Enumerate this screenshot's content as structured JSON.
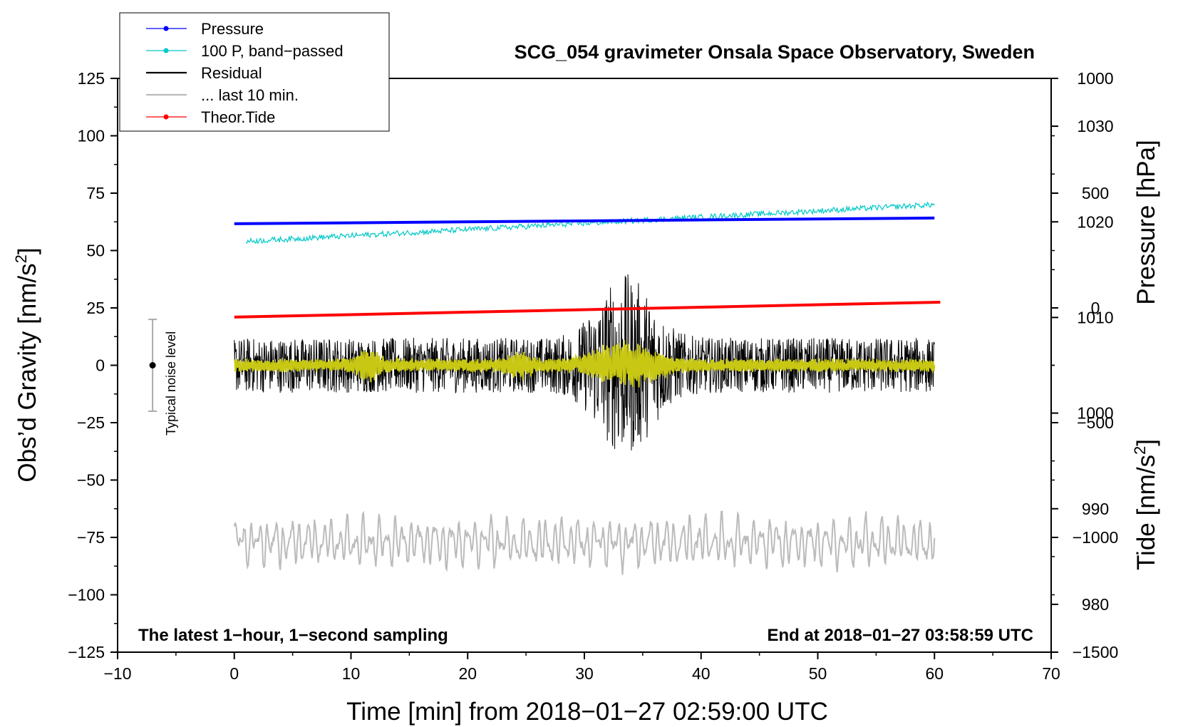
{
  "chart_data": {
    "type": "line",
    "title": "SCG_054 gravimeter Onsala Space Observatory, Sweden",
    "xlabel": "Time [min] from 2018−01−27 02:59:00 UTC",
    "ylabel_left_main": "Obs’d Gravity [nm/s",
    "ylabel_left_sup": "2",
    "ylabel_left_end": "]",
    "ylabel_right_pressure": "Pressure [hPa]",
    "ylabel_right_tide_main": "Tide [nm/s",
    "ylabel_right_tide_sup": "2",
    "ylabel_right_tide_end": "]",
    "xlim": [
      -10,
      70
    ],
    "ylim_left": [
      -125,
      125
    ],
    "ylim_pressure_axis": [
      975,
      1035
    ],
    "ylim_tide_axis": [
      -1500,
      1000
    ],
    "x_ticks": [
      "−10",
      "0",
      "10",
      "20",
      "30",
      "40",
      "50",
      "60",
      "70"
    ],
    "x_tick_values": [
      -10,
      0,
      10,
      20,
      30,
      40,
      50,
      60,
      70
    ],
    "y_left_ticks": [
      "125",
      "100",
      "75",
      "50",
      "25",
      "0",
      "−25",
      "−50",
      "−75",
      "−100",
      "−125"
    ],
    "y_left_tick_values": [
      125,
      100,
      75,
      50,
      25,
      0,
      -25,
      -50,
      -75,
      -100,
      -125
    ],
    "pressure_ticks": [
      "1030",
      "1020",
      "1010",
      "1000",
      "990",
      "980"
    ],
    "pressure_tick_values": [
      1030,
      1020,
      1010,
      1000,
      990,
      980
    ],
    "tide_ticks": [
      "1000",
      "500",
      "0",
      "−500",
      "−1000",
      "−1500"
    ],
    "tide_tick_values": [
      1000,
      500,
      0,
      -500,
      -1000,
      -1500
    ],
    "legend": [
      {
        "label": "Pressure",
        "color": "#0000ff",
        "marker": true
      },
      {
        "label": "100 P, band−passed",
        "color": "#00c8c8",
        "marker": true
      },
      {
        "label": "Residual",
        "color": "#000000",
        "marker": false
      },
      {
        "label": "... last 10 min.",
        "color": "#bbbbbb",
        "marker": false
      },
      {
        "label": "Theor.Tide",
        "color": "#ff0000",
        "marker": true
      }
    ],
    "annotations": {
      "left_bottom": "The latest 1−hour, 1−second sampling",
      "right_bottom": "End at 2018−01−27 03:58:59 UTC",
      "noise_label": "Typical noise level"
    },
    "noise_bar": {
      "x": -7,
      "center": 0,
      "half_range": 20
    },
    "series": [
      {
        "name": "Pressure",
        "axis": "pressure_hPa",
        "color": "#0000ff",
        "x_range": [
          0,
          60
        ],
        "start": 1019.8,
        "end": 1020.4
      },
      {
        "name": "100 P, band−passed",
        "axis": "gravity",
        "color": "#00c8c8",
        "x_range": [
          1,
          60
        ],
        "start": 54,
        "end": 70,
        "noise_amplitude": 1.2
      },
      {
        "name": "Residual",
        "axis": "gravity",
        "color": "#000000",
        "x_range": [
          0,
          60
        ],
        "baseline_amplitude": 12,
        "peak_amplitude": 40,
        "peak_x": 33.5,
        "min_value": -50,
        "max_value": 40
      },
      {
        "name": "Residual (low-pass)",
        "axis": "gravity",
        "color": "#c8c814",
        "x_range": [
          0,
          60
        ],
        "baseline_amplitude": 3,
        "peak_amplitude": 12,
        "peak_x": 33.5
      },
      {
        "name": "... last 10 min.",
        "axis": "gravity",
        "color": "#bbbbbb",
        "x_range": [
          0,
          60
        ],
        "center": -77,
        "amplitude": 10,
        "min_value": -96,
        "max_value": -61
      },
      {
        "name": "Theor.Tide",
        "axis": "tide_nm_s2",
        "color": "#ff0000",
        "x_range": [
          0,
          60.5
        ],
        "start": -40,
        "end": 25
      }
    ]
  }
}
